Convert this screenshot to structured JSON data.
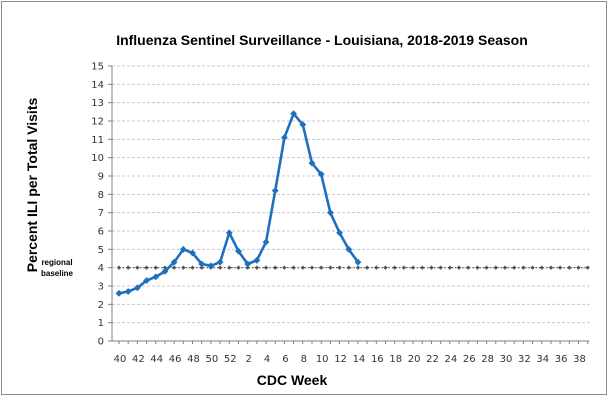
{
  "chart_data": {
    "type": "line",
    "title": "Influenza Sentinel Surveillance - Louisiana, 2018-2019 Season",
    "xlabel": "CDC Week",
    "ylabel": "Percent ILI per Total Visits",
    "ylim": [
      0,
      15
    ],
    "y_ticks": [
      "0",
      "1",
      "2",
      "3",
      "4",
      "5",
      "6",
      "7",
      "8",
      "9",
      "10",
      "11",
      "12",
      "13",
      "14",
      "15"
    ],
    "x_tick_labels": [
      "40",
      "42",
      "44",
      "46",
      "48",
      "50",
      "52",
      "2",
      "4",
      "6",
      "8",
      "10",
      "12",
      "14",
      "16",
      "18",
      "20",
      "22",
      "24",
      "26",
      "28",
      "30",
      "32",
      "34",
      "36",
      "38"
    ],
    "x_weeks": [
      "40",
      "41",
      "42",
      "43",
      "44",
      "45",
      "46",
      "47",
      "48",
      "49",
      "50",
      "51",
      "52",
      "1",
      "2",
      "3",
      "4",
      "5",
      "6",
      "7",
      "8",
      "9",
      "10",
      "11",
      "12",
      "13",
      "14",
      "15",
      "16",
      "17",
      "18",
      "19",
      "20",
      "21",
      "22",
      "23",
      "24",
      "25",
      "26",
      "27",
      "28",
      "29",
      "30",
      "31",
      "32",
      "33",
      "34",
      "35",
      "36",
      "37",
      "38",
      "39"
    ],
    "grid": true,
    "series": [
      {
        "values": [
          2.6,
          2.7,
          2.9,
          3.3,
          3.5,
          3.8,
          4.3,
          5.0,
          4.8,
          4.2,
          4.1,
          4.3,
          5.9,
          4.9,
          4.2,
          4.4,
          5.4,
          8.2,
          11.1,
          12.4,
          11.8,
          9.7,
          9.1,
          7.0,
          5.9,
          5.0,
          4.3
        ],
        "color": "#1f6fc0"
      },
      {
        "name": "regional baseline",
        "values": [
          4.0,
          4.0,
          4.0,
          4.0,
          4.0,
          4.0,
          4.0,
          4.0,
          4.0,
          4.0,
          4.0,
          4.0,
          4.0,
          4.0,
          4.0,
          4.0,
          4.0,
          4.0,
          4.0,
          4.0,
          4.0,
          4.0,
          4.0,
          4.0,
          4.0,
          4.0,
          4.0,
          4.0,
          4.0,
          4.0,
          4.0,
          4.0,
          4.0,
          4.0,
          4.0,
          4.0,
          4.0,
          4.0,
          4.0,
          4.0,
          4.0,
          4.0,
          4.0,
          4.0,
          4.0,
          4.0,
          4.0,
          4.0,
          4.0,
          4.0,
          4.0,
          4.0
        ],
        "color": "#555555"
      }
    ],
    "baseline_label": [
      "regional",
      "baseline"
    ]
  }
}
